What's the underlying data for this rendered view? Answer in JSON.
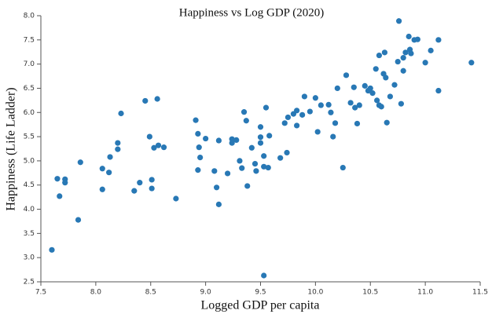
{
  "chart_data": {
    "type": "scatter",
    "title": "Happiness vs Log GDP (2020)",
    "x_label": "Logged GDP per capita",
    "y_label": "Happiness (Life Ladder)",
    "color": "#2878b5",
    "x": [
      7.6,
      7.65,
      7.67,
      7.72,
      7.72,
      7.84,
      7.86,
      8.06,
      8.06,
      8.12,
      8.13,
      8.2,
      8.2,
      8.23,
      8.35,
      8.4,
      8.45,
      8.49,
      8.51,
      8.51,
      8.53,
      8.56,
      8.57,
      8.62,
      8.73,
      8.91,
      8.93,
      8.93,
      8.94,
      8.95,
      9.0,
      9.08,
      9.1,
      9.12,
      9.12,
      9.2,
      9.24,
      9.24,
      9.28,
      9.31,
      9.33,
      9.35,
      9.37,
      9.38,
      9.42,
      9.45,
      9.46,
      9.5,
      9.5,
      9.5,
      9.53,
      9.53,
      9.53,
      9.55,
      9.57,
      9.58,
      9.68,
      9.72,
      9.74,
      9.75,
      9.8,
      9.83,
      9.83,
      9.88,
      9.9,
      9.95,
      10.0,
      10.02,
      10.05,
      10.12,
      10.14,
      10.16,
      10.18,
      10.2,
      10.25,
      10.28,
      10.32,
      10.35,
      10.36,
      10.38,
      10.4,
      10.45,
      10.48,
      10.5,
      10.52,
      10.55,
      10.56,
      10.58,
      10.58,
      10.6,
      10.62,
      10.63,
      10.64,
      10.65,
      10.68,
      10.72,
      10.75,
      10.76,
      10.78,
      10.8,
      10.8,
      10.82,
      10.85,
      10.86,
      10.87,
      10.9,
      10.93,
      11.0,
      11.05,
      11.12,
      11.12,
      11.42
    ],
    "values": [
      3.16,
      4.63,
      4.27,
      4.62,
      4.55,
      3.78,
      4.97,
      4.84,
      4.41,
      4.76,
      5.08,
      5.37,
      5.24,
      5.98,
      4.38,
      4.55,
      6.24,
      5.5,
      4.61,
      4.43,
      5.27,
      6.28,
      5.32,
      5.28,
      4.22,
      5.84,
      5.56,
      4.81,
      5.28,
      5.07,
      5.46,
      4.79,
      4.45,
      4.1,
      5.42,
      4.74,
      5.37,
      5.45,
      5.43,
      5.0,
      4.85,
      6.01,
      5.83,
      4.48,
      5.27,
      4.94,
      4.79,
      5.7,
      5.49,
      5.37,
      2.63,
      5.1,
      4.88,
      6.1,
      4.86,
      5.52,
      5.06,
      5.78,
      5.17,
      5.9,
      5.97,
      5.73,
      6.04,
      5.95,
      6.33,
      6.02,
      6.3,
      5.6,
      6.15,
      6.16,
      6.0,
      5.5,
      5.78,
      6.5,
      4.86,
      6.77,
      6.2,
      6.52,
      6.1,
      5.77,
      6.15,
      6.55,
      6.45,
      6.5,
      6.4,
      6.9,
      6.25,
      7.18,
      6.15,
      6.12,
      6.8,
      7.24,
      6.72,
      5.79,
      6.33,
      6.57,
      7.05,
      7.89,
      6.18,
      7.13,
      6.86,
      7.24,
      7.57,
      7.3,
      7.22,
      7.5,
      7.51,
      7.03,
      7.28,
      7.5,
      6.45,
      7.03
    ],
    "xlim": [
      7.5,
      11.5
    ],
    "xticks": [
      7.5,
      {
        "value": 8,
        "label": "8.0"
      },
      8.5,
      {
        "value": 9,
        "label": "9.0"
      },
      9.5,
      {
        "value": 10,
        "label": "10.0"
      },
      10.5,
      {
        "value": 11,
        "label": "11.0"
      },
      11.5
    ],
    "ylim": [
      2.5,
      8
    ],
    "yticks": [
      2.5,
      {
        "value": 3,
        "label": "3.0"
      },
      3.5,
      {
        "value": 4,
        "label": "4.0"
      },
      4.5,
      {
        "value": 5,
        "label": "5.0"
      },
      5.5,
      {
        "value": 6,
        "label": "6.0"
      },
      6.5,
      {
        "value": 7,
        "label": "7.0"
      },
      7.5,
      {
        "value": 8,
        "label": "8.0"
      }
    ]
  }
}
